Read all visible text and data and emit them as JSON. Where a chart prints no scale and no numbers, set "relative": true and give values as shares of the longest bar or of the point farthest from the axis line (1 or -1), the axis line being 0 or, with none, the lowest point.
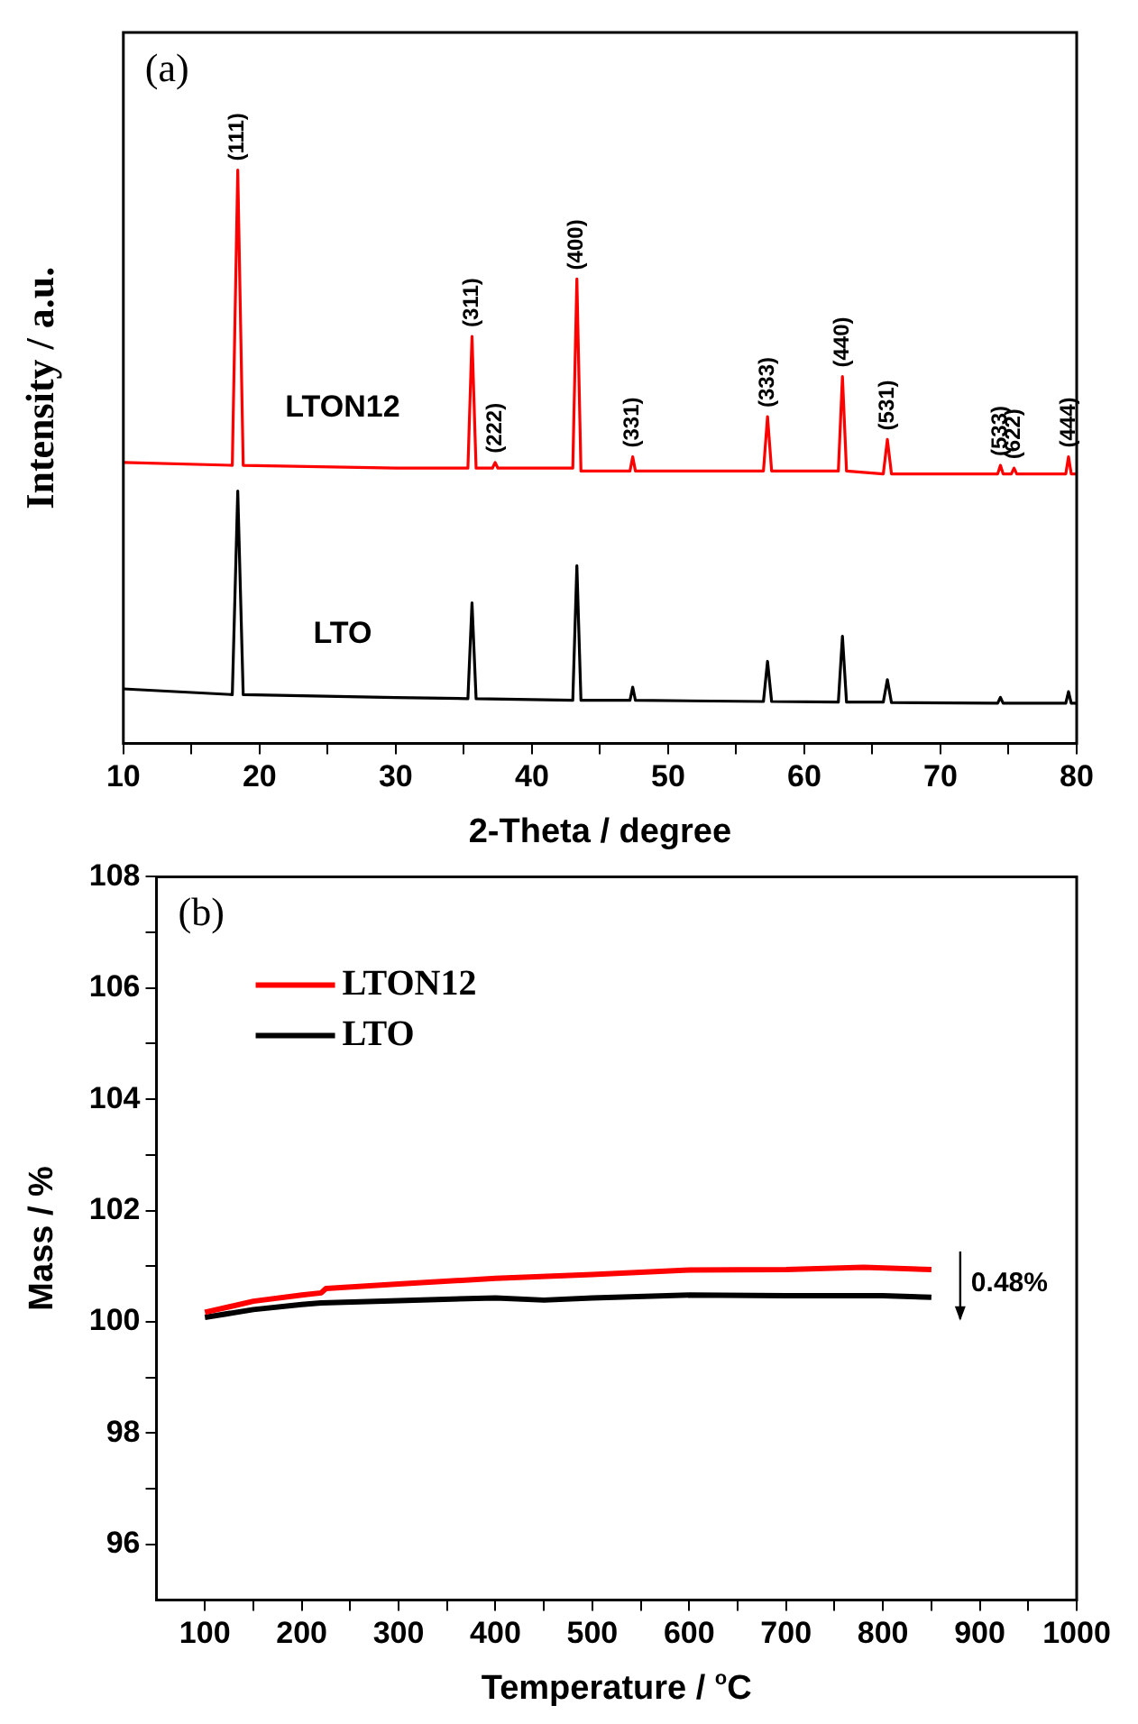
{
  "chart_data": [
    {
      "type": "line",
      "relative": true,
      "xlabel": "2-Theta / degree",
      "ylabel": "Intensity / a.u.",
      "xlim": [
        10,
        80
      ],
      "xticks": [
        10,
        {
          "value": 15,
          "label": null
        },
        20,
        {
          "value": 25,
          "label": null
        },
        30,
        {
          "value": 35,
          "label": null
        },
        40,
        {
          "value": 45,
          "label": null
        },
        50,
        {
          "value": 55,
          "label": null
        },
        60,
        {
          "value": 65,
          "label": null
        },
        70,
        {
          "value": 75,
          "label": null
        },
        80
      ],
      "tick_labels": "x",
      "grid": false,
      "legend": false,
      "marker": "none",
      "line_style": "solid",
      "annotations": [
        "(a)",
        {
          "text": "(111)",
          "x": 18.4,
          "y": 1.0
        },
        {
          "text": "(311)",
          "x": 35.6,
          "y": 0.71
        },
        {
          "text": "(222)",
          "x": 37.3,
          "y": 0.49
        },
        {
          "text": "(400)",
          "x": 43.3,
          "y": 0.81
        },
        {
          "text": "(331)",
          "x": 47.4,
          "y": 0.5
        },
        {
          "text": "(333)",
          "x": 57.3,
          "y": 0.57
        },
        {
          "text": "(440)",
          "x": 62.8,
          "y": 0.64
        },
        {
          "text": "(531)",
          "x": 66.1,
          "y": 0.53
        },
        {
          "text": "(533)",
          "x": 74.4,
          "y": 0.485
        },
        {
          "text": "(622)",
          "x": 75.4,
          "y": 0.48
        },
        {
          "text": "(444)",
          "x": 79.4,
          "y": 0.5
        }
      ],
      "series": [
        {
          "name": "LTON12",
          "color": "#ff0000",
          "x": [
            10,
            18.0,
            18.4,
            18.8,
            30,
            35.3,
            35.6,
            35.9,
            37.1,
            37.3,
            37.5,
            43.0,
            43.3,
            43.6,
            47.2,
            47.4,
            47.6,
            57.0,
            57.3,
            57.6,
            62.5,
            62.8,
            63.1,
            65.8,
            66.1,
            66.4,
            74.2,
            74.4,
            74.6,
            75.2,
            75.4,
            75.6,
            79.2,
            79.4,
            79.6,
            80
          ],
          "values": [
            0.49,
            0.485,
            1.0,
            0.485,
            0.48,
            0.48,
            0.71,
            0.48,
            0.48,
            0.49,
            0.48,
            0.48,
            0.81,
            0.475,
            0.475,
            0.5,
            0.475,
            0.475,
            0.57,
            0.475,
            0.475,
            0.64,
            0.475,
            0.47,
            0.53,
            0.47,
            0.47,
            0.485,
            0.47,
            0.47,
            0.48,
            0.47,
            0.47,
            0.5,
            0.47,
            0.47
          ]
        },
        {
          "name": "LTO",
          "color": "#000000",
          "x": [
            10,
            18.0,
            18.4,
            18.8,
            30,
            35.3,
            35.6,
            35.9,
            43.0,
            43.3,
            43.6,
            47.2,
            47.4,
            47.6,
            57.0,
            57.3,
            57.6,
            62.5,
            62.8,
            63.1,
            65.8,
            66.1,
            66.4,
            74.2,
            74.4,
            74.6,
            79.2,
            79.4,
            79.6,
            80
          ],
          "values": [
            0.095,
            0.085,
            0.44,
            0.085,
            0.08,
            0.078,
            0.245,
            0.078,
            0.075,
            0.31,
            0.075,
            0.075,
            0.098,
            0.075,
            0.073,
            0.143,
            0.073,
            0.072,
            0.187,
            0.072,
            0.072,
            0.111,
            0.071,
            0.07,
            0.08,
            0.07,
            0.07,
            0.09,
            0.07,
            0.07
          ]
        }
      ]
    },
    {
      "type": "line",
      "xlabel": "Temperature / $^{o}$C",
      "ylabel": "Mass / %",
      "xlim": [
        50,
        1000
      ],
      "xticks": [
        100,
        {
          "value": 150,
          "label": null
        },
        200,
        {
          "value": 250,
          "label": null
        },
        300,
        {
          "value": 350,
          "label": null
        },
        400,
        {
          "value": 450,
          "label": null
        },
        500,
        {
          "value": 550,
          "label": null
        },
        600,
        {
          "value": 650,
          "label": null
        },
        700,
        {
          "value": 750,
          "label": null
        },
        800,
        {
          "value": 850,
          "label": null
        },
        900,
        {
          "value": 950,
          "label": null
        },
        1000
      ],
      "ylim": [
        95,
        108
      ],
      "yticks": [
        96,
        {
          "value": 97,
          "label": null
        },
        98,
        {
          "value": 99,
          "label": null
        },
        100,
        {
          "value": 101,
          "label": null
        },
        102,
        {
          "value": 103,
          "label": null
        },
        104,
        {
          "value": 105,
          "label": null
        },
        106,
        {
          "value": 107,
          "label": null
        },
        108
      ],
      "grid": false,
      "legend": "top left",
      "marker": "none",
      "line_style": "solid",
      "annotations": [
        "(b)",
        "0.48%"
      ],
      "series": [
        {
          "name": "LTON12",
          "color": "#ff0000",
          "x": [
            100,
            150,
            200,
            220,
            225,
            300,
            400,
            500,
            600,
            700,
            780,
            850
          ],
          "values": [
            100.17,
            100.37,
            100.48,
            100.52,
            100.6,
            100.68,
            100.78,
            100.85,
            100.93,
            100.94,
            100.98,
            100.94
          ]
        },
        {
          "name": "LTO",
          "color": "#000000",
          "x": [
            100,
            150,
            200,
            220,
            300,
            400,
            450,
            500,
            600,
            700,
            800,
            850
          ],
          "values": [
            100.08,
            100.22,
            100.31,
            100.34,
            100.38,
            100.43,
            100.39,
            100.43,
            100.48,
            100.47,
            100.47,
            100.44
          ]
        }
      ]
    }
  ]
}
